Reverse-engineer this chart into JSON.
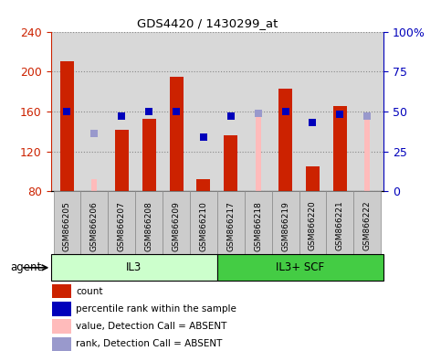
{
  "title": "GDS4420 / 1430299_at",
  "samples": [
    "GSM866205",
    "GSM866206",
    "GSM866207",
    "GSM866208",
    "GSM866209",
    "GSM866210",
    "GSM866217",
    "GSM866218",
    "GSM866219",
    "GSM866220",
    "GSM866221",
    "GSM866222"
  ],
  "bar_values": [
    210,
    null,
    142,
    153,
    195,
    92,
    136,
    null,
    183,
    105,
    165,
    null
  ],
  "bar_absent_values": [
    null,
    92,
    null,
    null,
    null,
    null,
    null,
    160,
    null,
    null,
    null,
    153
  ],
  "bar_color_present": "#cc2200",
  "bar_color_absent": "#ffbbbb",
  "rank_values": [
    50,
    null,
    47,
    50,
    50,
    34,
    47,
    null,
    50,
    43,
    48,
    47
  ],
  "rank_absent_values": [
    null,
    36,
    null,
    null,
    null,
    null,
    null,
    49,
    null,
    null,
    null,
    47
  ],
  "rank_color_present": "#0000bb",
  "rank_color_absent": "#9999cc",
  "ylim_left": [
    80,
    240
  ],
  "ylim_right": [
    0,
    100
  ],
  "yticks_left": [
    80,
    120,
    160,
    200,
    240
  ],
  "yticks_right": [
    0,
    25,
    50,
    75,
    100
  ],
  "ytick_labels_right": [
    "0",
    "25",
    "50",
    "75",
    "100%"
  ],
  "groups": [
    {
      "label": "IL3",
      "start": 0,
      "end": 6,
      "color": "#ccffcc"
    },
    {
      "label": "IL3+ SCF",
      "start": 6,
      "end": 12,
      "color": "#44cc44"
    }
  ],
  "agent_label": "agent",
  "bar_width": 0.5,
  "rank_marker_size": 6,
  "legend_items": [
    {
      "label": "count",
      "color": "#cc2200"
    },
    {
      "label": "percentile rank within the sample",
      "color": "#0000bb"
    },
    {
      "label": "value, Detection Call = ABSENT",
      "color": "#ffbbbb"
    },
    {
      "label": "rank, Detection Call = ABSENT",
      "color": "#9999cc"
    }
  ]
}
